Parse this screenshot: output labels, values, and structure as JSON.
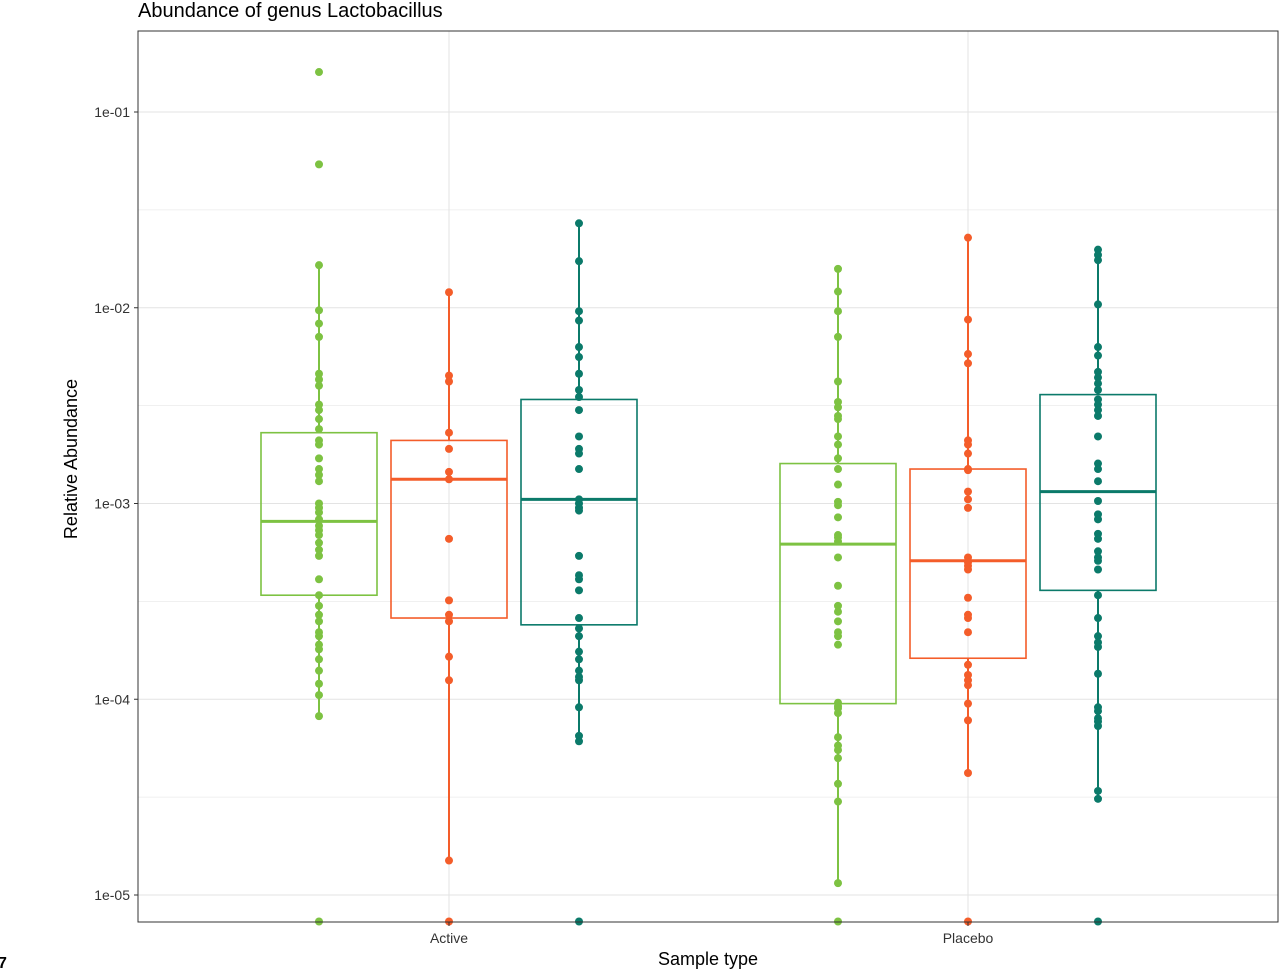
{
  "chart_data": {
    "type": "box",
    "title": "Abundance of genus Lactobacillus",
    "xlabel": "Sample type",
    "ylabel": "Relative Abundance",
    "y_scale": "log10",
    "ylim": [
      7.3e-06,
      0.26
    ],
    "y_ticks": [
      1e-05,
      0.0001,
      0.001,
      0.01,
      0.1
    ],
    "y_tick_labels": [
      "1e-05",
      "1e-04",
      "1e-03",
      "1e-02",
      "1e-01"
    ],
    "categories": [
      "Active",
      "Placebo"
    ],
    "grid": true,
    "legend": "none",
    "stray_glyph": "7",
    "series": [
      {
        "color": "#7dc242",
        "boxes": [
          {
            "category": "Active",
            "min": 8.2e-05,
            "q1": 0.00034,
            "median": 0.00081,
            "q3": 0.0023,
            "max": 0.0165,
            "points": [
              0.16,
              0.054,
              0.0165,
              0.0097,
              0.0083,
              0.0071,
              0.0046,
              0.0043,
              0.004,
              0.0032,
              0.003,
              0.0027,
              0.0024,
              0.0021,
              0.002,
              0.0017,
              0.0015,
              0.0014,
              0.0013,
              0.001,
              0.00095,
              0.0009,
              0.00083,
              0.00077,
              0.00073,
              0.00069,
              0.00063,
              0.00058,
              0.00054,
              0.00041,
              0.00034,
              0.0003,
              0.00027,
              0.00025,
              0.00022,
              0.00021,
              0.00019,
              0.00018,
              0.00016,
              0.00014,
              0.00012,
              0.000105,
              8.2e-05,
              7.3e-06
            ]
          },
          {
            "category": "Placebo",
            "min": 1.15e-05,
            "q1": 9.5e-05,
            "median": 0.00062,
            "q3": 0.0016,
            "max": 0.0158,
            "points": [
              0.0158,
              0.0121,
              0.0096,
              0.0071,
              0.0042,
              0.0033,
              0.0031,
              0.0028,
              0.0027,
              0.0022,
              0.002,
              0.0017,
              0.0015,
              0.00125,
              0.00102,
              0.00098,
              0.00085,
              0.00069,
              0.00067,
              0.00064,
              0.00053,
              0.00038,
              0.0003,
              0.00028,
              0.00025,
              0.00022,
              0.00021,
              0.00019,
              9.6e-05,
              9.2e-05,
              9e-05,
              8.5e-05,
              6.4e-05,
              5.8e-05,
              5.5e-05,
              5e-05,
              3.7e-05,
              3e-05,
              1.15e-05,
              7.3e-06
            ]
          }
        ]
      },
      {
        "color": "#f45d2a",
        "boxes": [
          {
            "category": "Active",
            "min": 1.5e-05,
            "q1": 0.00026,
            "median": 0.00133,
            "q3": 0.0021,
            "max": 0.012,
            "points": [
              0.012,
              0.0045,
              0.0042,
              0.0023,
              0.0019,
              0.00145,
              0.00133,
              0.00066,
              0.00032,
              0.00027,
              0.00025,
              0.000165,
              0.000125,
              1.5e-05,
              7.3e-06
            ]
          },
          {
            "category": "Placebo",
            "min": 4.2e-05,
            "q1": 0.000162,
            "median": 0.00051,
            "q3": 0.0015,
            "max": 0.0228,
            "points": [
              0.0228,
              0.0087,
              0.0058,
              0.0052,
              0.0021,
              0.002,
              0.0018,
              0.0015,
              0.00148,
              0.00115,
              0.00105,
              0.00095,
              0.00053,
              0.0005,
              0.00048,
              0.00046,
              0.00033,
              0.00027,
              0.00026,
              0.00022,
              0.00015,
              0.000133,
              0.000125,
              0.000118,
              9.5e-05,
              7.8e-05,
              4.2e-05,
              7.3e-06
            ]
          }
        ]
      },
      {
        "color": "#0b7a6a",
        "boxes": [
          {
            "category": "Active",
            "min": 6.1e-05,
            "q1": 0.00024,
            "median": 0.00105,
            "q3": 0.0034,
            "max": 0.027,
            "points": [
              0.027,
              0.0173,
              0.0096,
              0.0086,
              0.0063,
              0.0056,
              0.0046,
              0.0038,
              0.0035,
              0.003,
              0.0022,
              0.0019,
              0.0018,
              0.0015,
              0.00105,
              0.001,
              0.00095,
              0.00092,
              0.00054,
              0.00043,
              0.00041,
              0.00036,
              0.00026,
              0.00023,
              0.00021,
              0.000175,
              0.00016,
              0.00014,
              0.00013,
              0.000125,
              9.1e-05,
              6.5e-05,
              6.1e-05,
              7.3e-06
            ]
          },
          {
            "category": "Placebo",
            "min": 3.1e-05,
            "q1": 0.00036,
            "median": 0.00115,
            "q3": 0.0036,
            "max": 0.0198,
            "points": [
              0.0198,
              0.0186,
              0.0175,
              0.0104,
              0.0063,
              0.0057,
              0.0047,
              0.0044,
              0.0041,
              0.0038,
              0.0034,
              0.0032,
              0.003,
              0.0028,
              0.0022,
              0.0016,
              0.0015,
              0.0013,
              0.00103,
              0.00088,
              0.00083,
              0.0007,
              0.00066,
              0.00057,
              0.00053,
              0.00051,
              0.00046,
              0.00034,
              0.00026,
              0.00021,
              0.000195,
              0.000185,
              0.000135,
              9.1e-05,
              8.7e-05,
              8e-05,
              7.7e-05,
              7.3e-05,
              3.4e-05,
              3.1e-05,
              7.3e-06
            ]
          }
        ]
      }
    ]
  }
}
